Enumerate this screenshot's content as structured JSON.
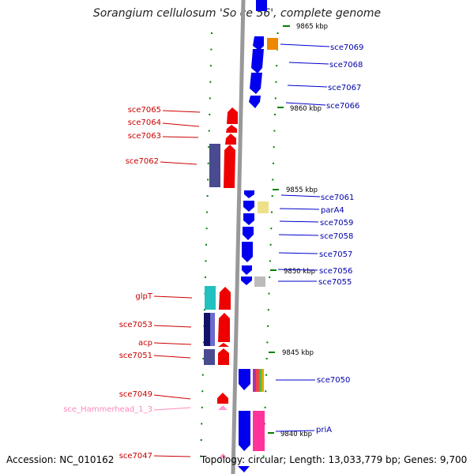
{
  "title": "Sorangium cellulosum 'So ce 56', complete genome",
  "footer": {
    "accession": "Accession: NC_010162",
    "summary": "Topology: circular; Length: 13,033,779 bp; Genes: 9,700"
  },
  "kbp_labels": [
    "9865 kbp",
    "9860 kbp",
    "9855 kbp",
    "9850 kbp",
    "9845 kbp",
    "9840 kbp"
  ],
  "genes_right": [
    "sce7069",
    "sce7068",
    "sce7067",
    "sce7066",
    "sce7061",
    "parA4",
    "sce7059",
    "sce7058",
    "sce7057",
    "sce7056",
    "sce7055",
    "sce7050",
    "priA"
  ],
  "genes_left": [
    "sce7065",
    "sce7064",
    "sce7063",
    "sce7062",
    "glpT",
    "sce7053",
    "acp",
    "sce7051",
    "sce7049",
    "sce_Hammerhead_1_3",
    "sce7047"
  ],
  "colors": {
    "forward": "#0000ee",
    "reverse": "#ee0000",
    "ncrna": "#ff99cc",
    "right_label": "#0000aa",
    "left_label": "#cc0000",
    "tick": "#008000",
    "backbone": "#999999"
  }
}
